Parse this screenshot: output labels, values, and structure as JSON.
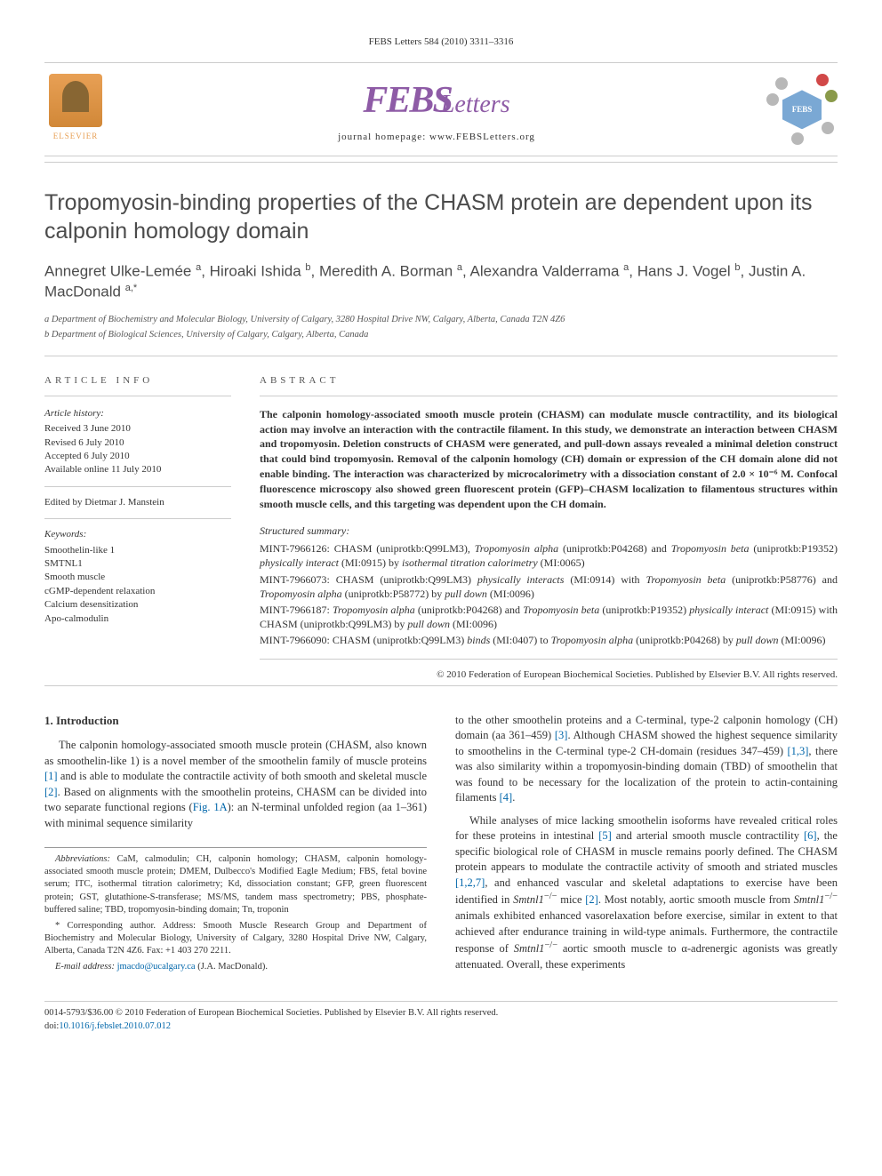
{
  "header": {
    "citation": "FEBS Letters 584 (2010) 3311–3316",
    "elsevier": "ELSEVIER",
    "febs_main": "FEBS",
    "febs_sub": "Letters",
    "homepage": "journal homepage: www.FEBSLetters.org",
    "badge_text": "FEBS"
  },
  "title": "Tropomyosin-binding properties of the CHASM protein are dependent upon its calponin homology domain",
  "authors_html": "Annegret Ulke-Lemée <sup>a</sup>, Hiroaki Ishida <sup>b</sup>, Meredith A. Borman <sup>a</sup>, Alexandra Valderrama <sup>a</sup>, Hans J. Vogel <sup>b</sup>, Justin A. MacDonald <sup>a,*</sup>",
  "affiliations": {
    "a": "a Department of Biochemistry and Molecular Biology, University of Calgary, 3280 Hospital Drive NW, Calgary, Alberta, Canada T2N 4Z6",
    "b": "b Department of Biological Sciences, University of Calgary, Calgary, Alberta, Canada"
  },
  "info": {
    "head": "ARTICLE INFO",
    "history_head": "Article history:",
    "history": [
      "Received 3 June 2010",
      "Revised 6 July 2010",
      "Accepted 6 July 2010",
      "Available online 11 July 2010"
    ],
    "editor": "Edited by Dietmar J. Manstein",
    "kw_head": "Keywords:",
    "keywords": [
      "Smoothelin-like 1",
      "SMTNL1",
      "Smooth muscle",
      "cGMP-dependent relaxation",
      "Calcium desensitization",
      "Apo-calmodulin"
    ]
  },
  "abstract": {
    "head": "ABSTRACT",
    "text": "The calponin homology-associated smooth muscle protein (CHASM) can modulate muscle contractility, and its biological action may involve an interaction with the contractile filament. In this study, we demonstrate an interaction between CHASM and tropomyosin. Deletion constructs of CHASM were generated, and pull-down assays revealed a minimal deletion construct that could bind tropomyosin. Removal of the calponin homology (CH) domain or expression of the CH domain alone did not enable binding. The interaction was characterized by microcalorimetry with a dissociation constant of 2.0 × 10⁻⁶ M. Confocal fluorescence microscopy also showed green fluorescent protein (GFP)–CHASM localization to filamentous structures within smooth muscle cells, and this targeting was dependent upon the CH domain.",
    "struct_head": "Structured summary:",
    "struct": [
      "MINT-7966126: CHASM (uniprotkb:Q99LM3), <i>Tropomyosin alpha</i> (uniprotkb:P04268) and <i>Tropomyosin beta</i> (uniprotkb:P19352) <i>physically interact</i> (MI:0915) by <i>isothermal titration calorimetry</i> (MI:0065)",
      "MINT-7966073: CHASM (uniprotkb:Q99LM3) <i>physically interacts</i> (MI:0914) with <i>Tropomyosin beta</i> (uniprotkb:P58776) and <i>Tropomyosin alpha</i> (uniprotkb:P58772) by <i>pull down</i> (MI:0096)",
      "MINT-7966187: <i>Tropomyosin alpha</i> (uniprotkb:P04268) and <i>Tropomyosin beta</i> (uniprotkb:P19352) <i>physically interact</i> (MI:0915) with CHASM (uniprotkb:Q99LM3) by <i>pull down</i> (MI:0096)",
      "MINT-7966090: CHASM (uniprotkb:Q99LM3) <i>binds</i> (MI:0407) to <i>Tropomyosin alpha</i> (uniprotkb:P04268) by <i>pull down</i> (MI:0096)"
    ],
    "copyright": "© 2010 Federation of European Biochemical Societies. Published by Elsevier B.V. All rights reserved."
  },
  "body": {
    "section_num": "1.",
    "section_title": "Introduction",
    "col1_p1": "The calponin homology-associated smooth muscle protein (CHASM, also known as smoothelin-like 1) is a novel member of the smoothelin family of muscle proteins [1] and is able to modulate the contractile activity of both smooth and skeletal muscle [2]. Based on alignments with the smoothelin proteins, CHASM can be divided into two separate functional regions (Fig. 1A): an N-terminal unfolded region (aa 1–361) with minimal sequence similarity",
    "col2_p1": "to the other smoothelin proteins and a C-terminal, type-2 calponin homology (CH) domain (aa 361–459) [3]. Although CHASM showed the highest sequence similarity to smoothelins in the C-terminal type-2 CH-domain (residues 347–459) [1,3], there was also similarity within a tropomyosin-binding domain (TBD) of smoothelin that was found to be necessary for the localization of the protein to actin-containing filaments [4].",
    "col2_p2": "While analyses of mice lacking smoothelin isoforms have revealed critical roles for these proteins in intestinal [5] and arterial smooth muscle contractility [6], the specific biological role of CHASM in muscle remains poorly defined. The CHASM protein appears to modulate the contractile activity of smooth and striated muscles [1,2,7], and enhanced vascular and skeletal adaptations to exercise have been identified in Smtnl1⁻/⁻ mice [2]. Most notably, aortic smooth muscle from Smtnl1⁻/⁻ animals exhibited enhanced vasorelaxation before exercise, similar in extent to that achieved after endurance training in wild-type animals. Furthermore, the contractile response of Smtnl1⁻/⁻ aortic smooth muscle to α-adrenergic agonists was greatly attenuated. Overall, these experiments"
  },
  "footnotes": {
    "abbrev_label": "Abbreviations:",
    "abbrev": "CaM, calmodulin; CH, calponin homology; CHASM, calponin homology-associated smooth muscle protein; DMEM, Dulbecco's Modified Eagle Medium; FBS, fetal bovine serum; ITC, isothermal titration calorimetry; Kd, dissociation constant; GFP, green fluorescent protein; GST, glutathione-S-transferase; MS/MS, tandem mass spectrometry; PBS, phosphate-buffered saline; TBD, tropomyosin-binding domain; Tn, troponin",
    "corr_label": "* Corresponding author.",
    "corr": "Address: Smooth Muscle Research Group and Department of Biochemistry and Molecular Biology, University of Calgary, 3280 Hospital Drive NW, Calgary, Alberta, Canada T2N 4Z6. Fax: +1 403 270 2211.",
    "email_label": "E-mail address:",
    "email": "jmacdo@ucalgary.ca",
    "email_suffix": "(J.A. MacDonald)."
  },
  "footer": {
    "line1": "0014-5793/$36.00 © 2010 Federation of European Biochemical Societies. Published by Elsevier B.V. All rights reserved.",
    "line2": "doi:10.1016/j.febslet.2010.07.012"
  },
  "colors": {
    "link": "#0066aa",
    "purple": "#8e5ba6",
    "orange": "#e8a055",
    "rule": "#cccccc"
  }
}
